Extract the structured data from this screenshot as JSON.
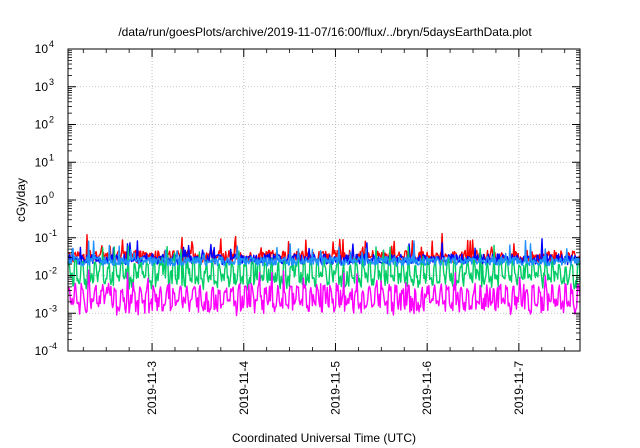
{
  "chart_data": {
    "type": "line",
    "title": "/data/run/goesPlots/archive/2019-11-07/16:00/flux/../bryn/5daysEarthData.plot",
    "xlabel": "Coordinated Universal Time (UTC)",
    "ylabel": "cGy/day",
    "yscale": "log",
    "ylim": [
      0.0001,
      10000
    ],
    "y_ticks": [
      {
        "base": "10",
        "exp": "-4",
        "value": 0.0001
      },
      {
        "base": "10",
        "exp": "-3",
        "value": 0.001
      },
      {
        "base": "10",
        "exp": "-2",
        "value": 0.01
      },
      {
        "base": "10",
        "exp": "-1",
        "value": 0.1
      },
      {
        "base": "10",
        "exp": "0",
        "value": 1
      },
      {
        "base": "10",
        "exp": "1",
        "value": 10
      },
      {
        "base": "10",
        "exp": "2",
        "value": 100
      },
      {
        "base": "10",
        "exp": "3",
        "value": 1000
      },
      {
        "base": "10",
        "exp": "4",
        "value": 10000
      }
    ],
    "xlim": [
      "2019-11-02 02:00",
      "2019-11-07 16:00"
    ],
    "x_ticks": [
      {
        "label": "2019-11-3",
        "value": "2019-11-03 00:00"
      },
      {
        "label": "2019-11-4",
        "value": "2019-11-04 00:00"
      },
      {
        "label": "2019-11-5",
        "value": "2019-11-05 00:00"
      },
      {
        "label": "2019-11-6",
        "value": "2019-11-06 00:00"
      },
      {
        "label": "2019-11-7",
        "value": "2019-11-07 00:00"
      }
    ],
    "grid": true,
    "legend": "none",
    "series": [
      {
        "color": "#ff0000",
        "level": 0.032,
        "spread": 0.16,
        "dips": false
      },
      {
        "color": "#0000ff",
        "level": 0.027,
        "spread": 0.14,
        "dips": false
      },
      {
        "color": "#00cc66",
        "level": 0.021,
        "spread": 0.13,
        "dips": true
      },
      {
        "color": "#1e90ff",
        "level": 0.024,
        "spread": 0.12,
        "dips": false
      },
      {
        "color": "#ff00ff",
        "level": 0.0045,
        "spread": 0.14,
        "dips": true
      }
    ]
  }
}
